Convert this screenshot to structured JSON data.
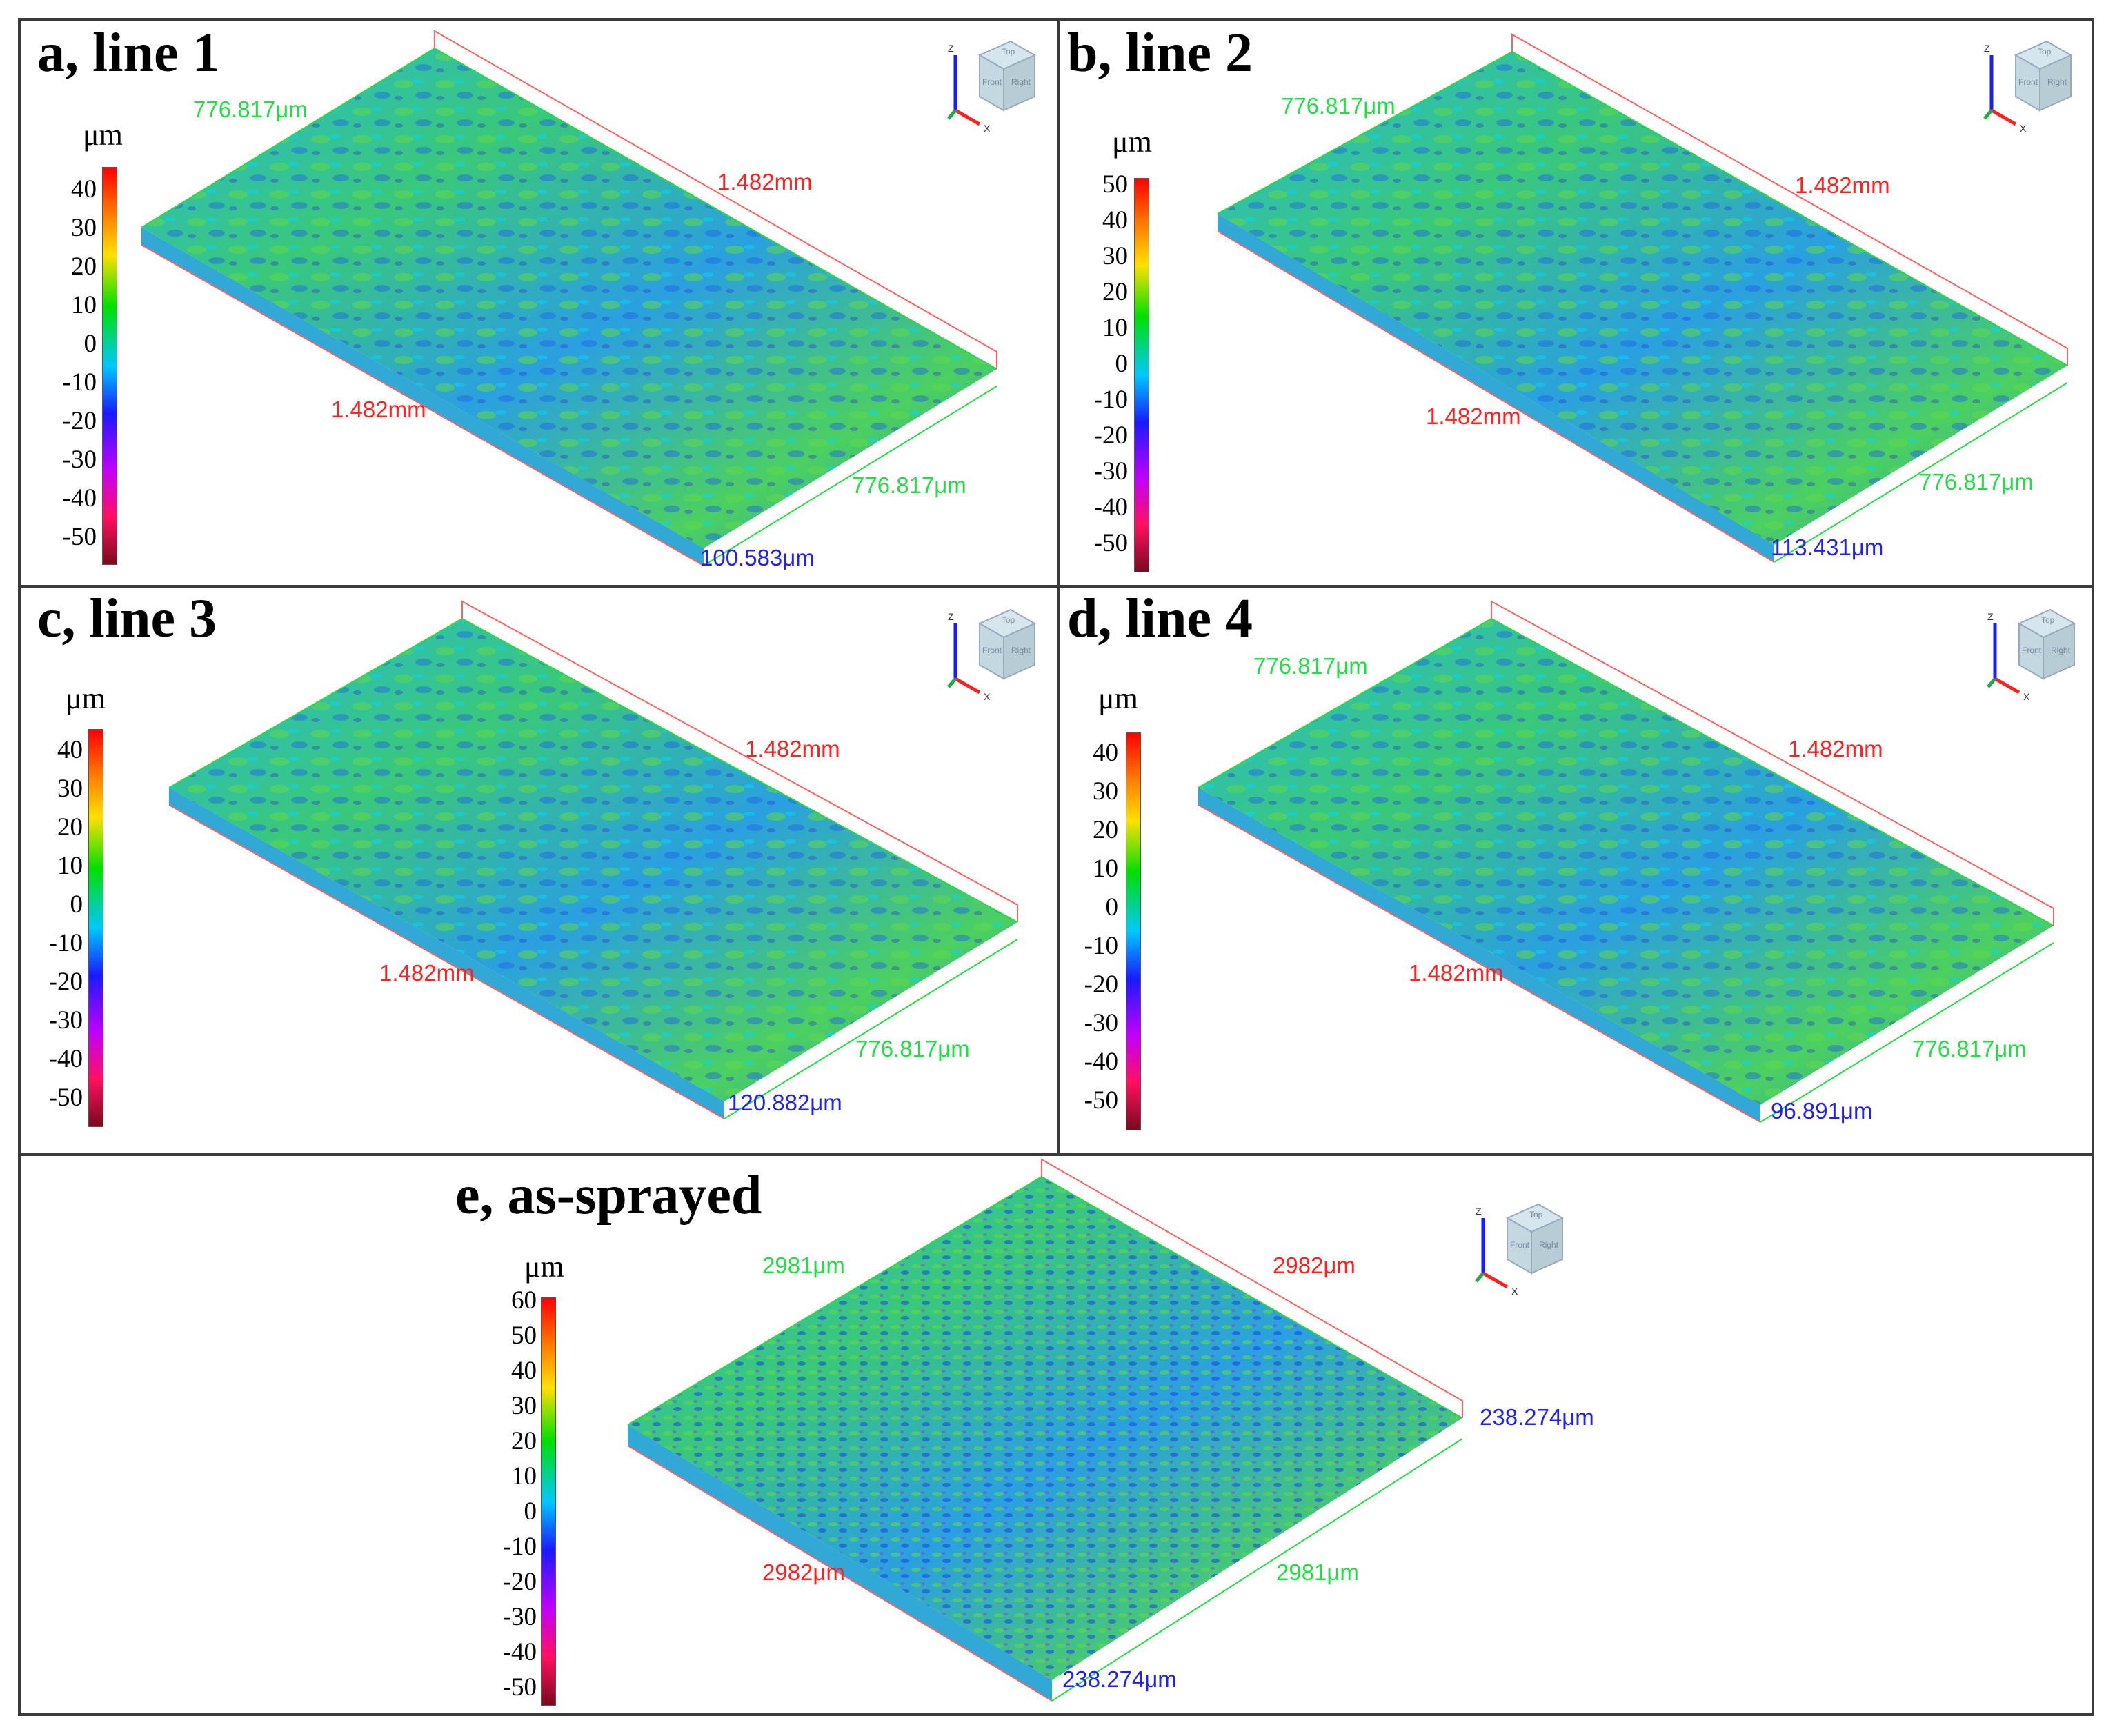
{
  "colors": {
    "colormap": [
      "#7a0a1e",
      "#ff1060",
      "#c000ff",
      "#1a1aff",
      "#00c8ff",
      "#00e000",
      "#9fe000",
      "#ffe000",
      "#ff8000",
      "#ff0000"
    ],
    "dim_red": "#ff2020",
    "dim_green": "#22dd44",
    "dim_blue": "#2222ee"
  },
  "axis_cube": {
    "faces": [
      "Top",
      "Front",
      "Right"
    ],
    "axes": [
      "Z",
      "X"
    ]
  },
  "panels": [
    {
      "label": "a, line 1",
      "unit": "μm",
      "ticks": [
        "40",
        "30",
        "20",
        "10",
        "0",
        "-10",
        "-20",
        "-30",
        "-40",
        "-50"
      ],
      "dim_top_green": "776.817μm",
      "dim_top_red": "1.482mm",
      "dim_front_red": "1.482mm",
      "dim_right_green": "776.817μm",
      "dim_height_blue": "100.583μm"
    },
    {
      "label": "b, line 2",
      "unit": "μm",
      "ticks": [
        "50",
        "40",
        "30",
        "20",
        "10",
        "0",
        "-10",
        "-20",
        "-30",
        "-40",
        "-50"
      ],
      "dim_top_green": "776.817μm",
      "dim_top_red": "1.482mm",
      "dim_front_red": "1.482mm",
      "dim_right_green": "776.817μm",
      "dim_height_blue": "113.431μm"
    },
    {
      "label": "c, line 3",
      "unit": "μm",
      "ticks": [
        "40",
        "30",
        "20",
        "10",
        "0",
        "-10",
        "-20",
        "-30",
        "-40",
        "-50"
      ],
      "dim_top_red": "1.482mm",
      "dim_front_red": "1.482mm",
      "dim_right_green": "776.817μm",
      "dim_height_blue": "120.882μm"
    },
    {
      "label": "d, line 4",
      "unit": "μm",
      "ticks": [
        "40",
        "30",
        "20",
        "10",
        "0",
        "-10",
        "-20",
        "-30",
        "-40",
        "-50"
      ],
      "dim_top_green": "776.817μm",
      "dim_top_red": "1.482mm",
      "dim_front_red": "1.482mm",
      "dim_right_green": "776.817μm",
      "dim_height_blue": "96.891μm"
    },
    {
      "label": "e, as-sprayed",
      "unit": "μm",
      "ticks": [
        "60",
        "50",
        "40",
        "30",
        "20",
        "10",
        "0",
        "-10",
        "-20",
        "-30",
        "-40",
        "-50"
      ],
      "dim_top_green": "2981μm",
      "dim_top_red": "2982μm",
      "dim_front_red": "2982μm",
      "dim_right_green": "2981μm",
      "dim_height_blue": "238.274μm",
      "dim_height_blue_2": "238.274μm"
    }
  ]
}
